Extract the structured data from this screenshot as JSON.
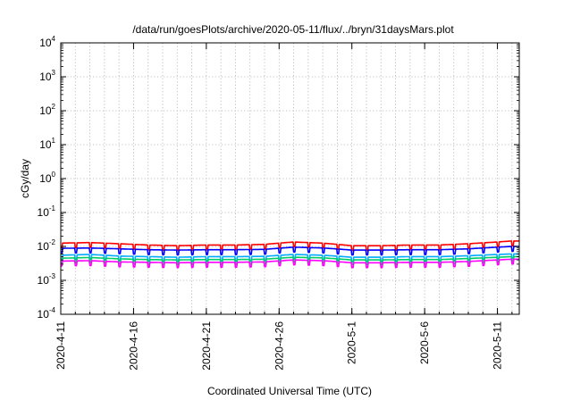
{
  "chart_data": {
    "type": "line",
    "title": "/data/run/goesPlots/archive/2020-05-11/flux/../bryn/31daysMars.plot",
    "xlabel": "Coordinated Universal Time (UTC)",
    "ylabel": "cGy/day",
    "y_scale": "log",
    "ylim_exponents": [
      -4,
      4
    ],
    "y_tick_labels": [
      {
        "base": "10",
        "exp": "-4"
      },
      {
        "base": "10",
        "exp": "-3"
      },
      {
        "base": "10",
        "exp": "-2"
      },
      {
        "base": "10",
        "exp": "-1"
      },
      {
        "base": "10",
        "exp": "0"
      },
      {
        "base": "10",
        "exp": "1"
      },
      {
        "base": "10",
        "exp": "2"
      },
      {
        "base": "10",
        "exp": "3"
      },
      {
        "base": "10",
        "exp": "4"
      }
    ],
    "xlim": [
      "2020-04-11",
      "2020-05-12 12:00"
    ],
    "x_tick_labels": [
      "2020-4-11",
      "2020-4-16",
      "2020-4-21",
      "2020-4-26",
      "2020-5-1",
      "2020-5-6",
      "2020-5-11"
    ],
    "x_tick_dates": [
      "2020-04-11",
      "2020-04-16",
      "2020-04-21",
      "2020-04-26",
      "2020-05-01",
      "2020-05-06",
      "2020-05-11"
    ],
    "grid": true,
    "legend": "none",
    "series": [
      {
        "color": "#ff0000",
        "x": [
          "2020-04-11",
          "2020-04-13",
          "2020-04-15",
          "2020-04-17",
          "2020-04-19",
          "2020-04-21",
          "2020-04-23",
          "2020-04-25",
          "2020-04-27",
          "2020-04-29",
          "2020-05-01",
          "2020-05-03",
          "2020-05-05",
          "2020-05-07",
          "2020-05-09",
          "2020-05-11",
          "2020-05-12"
        ],
        "values": [
          0.0125,
          0.013,
          0.012,
          0.011,
          0.0105,
          0.011,
          0.011,
          0.0115,
          0.0135,
          0.0125,
          0.0105,
          0.0105,
          0.011,
          0.011,
          0.012,
          0.0135,
          0.0145
        ]
      },
      {
        "color": "#0000ff",
        "x": [
          "2020-04-11",
          "2020-04-13",
          "2020-04-15",
          "2020-04-17",
          "2020-04-19",
          "2020-04-21",
          "2020-04-23",
          "2020-04-25",
          "2020-04-27",
          "2020-04-29",
          "2020-05-01",
          "2020-05-03",
          "2020-05-05",
          "2020-05-07",
          "2020-05-09",
          "2020-05-11",
          "2020-05-12"
        ],
        "values": [
          0.0088,
          0.009,
          0.0085,
          0.008,
          0.0078,
          0.008,
          0.008,
          0.0082,
          0.0095,
          0.009,
          0.0078,
          0.0078,
          0.008,
          0.008,
          0.0085,
          0.0095,
          0.01
        ]
      },
      {
        "color": "#00aaff",
        "x": [
          "2020-04-11",
          "2020-04-13",
          "2020-04-15",
          "2020-04-17",
          "2020-04-19",
          "2020-04-21",
          "2020-04-23",
          "2020-04-25",
          "2020-04-27",
          "2020-04-29",
          "2020-05-01",
          "2020-05-03",
          "2020-05-05",
          "2020-05-07",
          "2020-05-09",
          "2020-05-11",
          "2020-05-12"
        ],
        "values": [
          0.0055,
          0.0058,
          0.0052,
          0.005,
          0.0048,
          0.005,
          0.005,
          0.0051,
          0.0058,
          0.0055,
          0.0048,
          0.0048,
          0.005,
          0.005,
          0.0053,
          0.0058,
          0.006
        ]
      },
      {
        "color": "#00cc66",
        "x": [
          "2020-04-11",
          "2020-04-13",
          "2020-04-15",
          "2020-04-17",
          "2020-04-19",
          "2020-04-21",
          "2020-04-23",
          "2020-04-25",
          "2020-04-27",
          "2020-04-29",
          "2020-05-01",
          "2020-05-03",
          "2020-05-05",
          "2020-05-07",
          "2020-05-09",
          "2020-05-11",
          "2020-05-12"
        ],
        "values": [
          0.0045,
          0.0047,
          0.0043,
          0.0041,
          0.004,
          0.0041,
          0.0041,
          0.0042,
          0.0048,
          0.0046,
          0.004,
          0.004,
          0.0041,
          0.0041,
          0.0044,
          0.0048,
          0.005
        ]
      },
      {
        "color": "#ff00ff",
        "x": [
          "2020-04-11",
          "2020-04-13",
          "2020-04-15",
          "2020-04-17",
          "2020-04-19",
          "2020-04-21",
          "2020-04-23",
          "2020-04-25",
          "2020-04-27",
          "2020-04-29",
          "2020-05-01",
          "2020-05-03",
          "2020-05-05",
          "2020-05-07",
          "2020-05-09",
          "2020-05-11",
          "2020-05-12"
        ],
        "values": [
          0.0037,
          0.0038,
          0.0035,
          0.0034,
          0.0033,
          0.0034,
          0.0034,
          0.0035,
          0.004,
          0.0038,
          0.0033,
          0.0033,
          0.0034,
          0.0034,
          0.0036,
          0.004,
          0.0042
        ]
      }
    ]
  }
}
